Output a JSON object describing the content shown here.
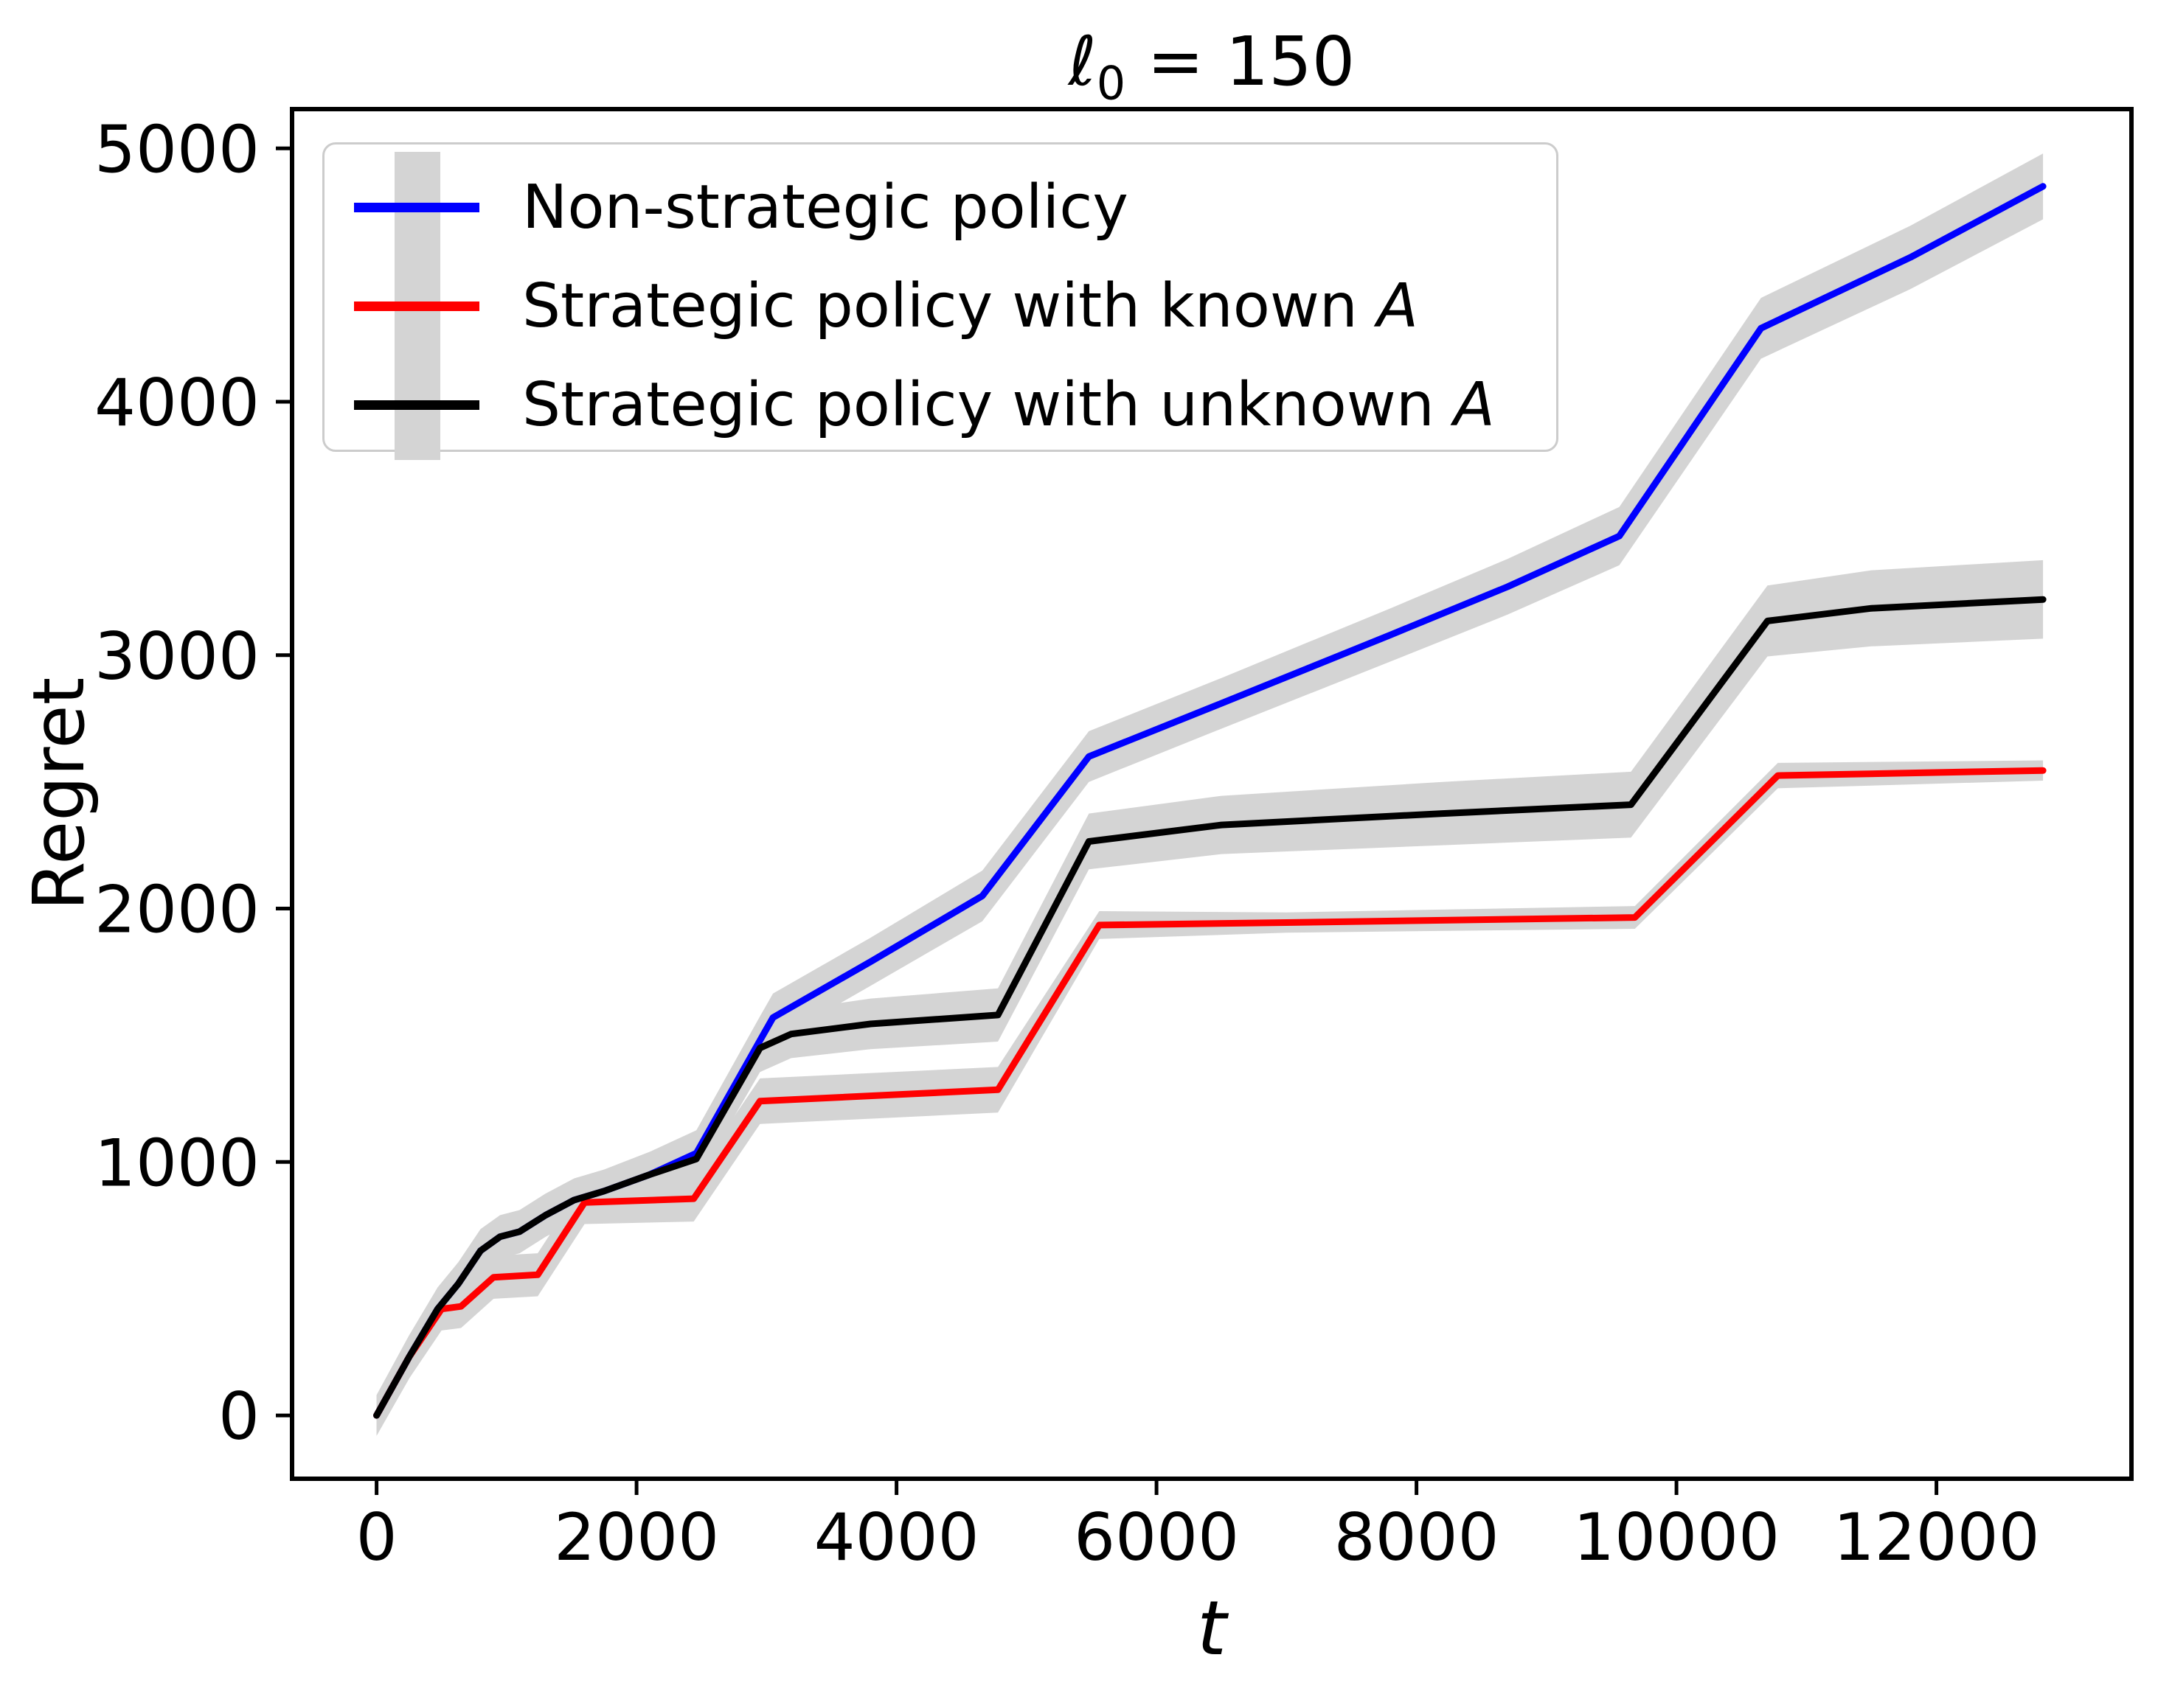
{
  "figure": {
    "background_color": "#ffffff",
    "axes_edge_color": "#000000",
    "band_color": "#d4d4d4"
  },
  "chart_data": {
    "type": "line",
    "title": "ℓ₀ = 150",
    "title_parts": {
      "symbol": "ℓ",
      "sub": "0",
      "rest": " = 150"
    },
    "xlabel": "t",
    "ylabel": "Regret",
    "xlim": [
      -650,
      13500
    ],
    "ylim": [
      -250,
      5155
    ],
    "xticks": [
      0,
      2000,
      4000,
      6000,
      8000,
      10000,
      12000
    ],
    "yticks": [
      0,
      1000,
      2000,
      3000,
      4000,
      5000
    ],
    "grid": false,
    "legend_position": "upper left",
    "series": [
      {
        "name": "Non-strategic policy",
        "color": "#0000ff",
        "band_color": "#d4d4d4",
        "t": [
          0,
          250,
          470,
          630,
          800,
          950,
          1100,
          1300,
          1520,
          1750,
          2100,
          2460,
          2950,
          3050,
          3800,
          4660,
          5480,
          6500,
          7800,
          8700,
          9560,
          10650,
          11800,
          12820
        ],
        "regret": [
          0,
          230,
          420,
          520,
          650,
          705,
          725,
          790,
          850,
          885,
          950,
          1035,
          1480,
          1570,
          1790,
          2050,
          2600,
          2810,
          3080,
          3270,
          3470,
          4290,
          4570,
          4850
        ],
        "band_halfwidth": [
          80,
          85,
          85,
          85,
          85,
          85,
          85,
          85,
          85,
          85,
          90,
          90,
          95,
          95,
          95,
          100,
          100,
          100,
          105,
          110,
          115,
          120,
          125,
          130
        ]
      },
      {
        "name": "Strategic policy with known A",
        "color": "#ff0000",
        "band_color": "#d4d4d4",
        "t": [
          0,
          250,
          500,
          650,
          900,
          1240,
          1600,
          2440,
          2950,
          4780,
          5560,
          7000,
          9680,
          10780,
          12820
        ],
        "regret": [
          0,
          230,
          420,
          430,
          545,
          555,
          840,
          855,
          1240,
          1285,
          1935,
          1945,
          1965,
          2525,
          2545
        ],
        "band_halfwidth": [
          80,
          85,
          85,
          85,
          85,
          85,
          85,
          90,
          90,
          90,
          55,
          40,
          45,
          50,
          40
        ]
      },
      {
        "name": "Strategic policy with unknown A",
        "color": "#000000",
        "band_color": "#d4d4d4",
        "t": [
          0,
          250,
          470,
          630,
          800,
          950,
          1100,
          1300,
          1520,
          1750,
          2100,
          2460,
          2950,
          3190,
          3800,
          4780,
          5480,
          6500,
          8200,
          9650,
          10700,
          11500,
          12820
        ],
        "regret": [
          0,
          230,
          420,
          520,
          650,
          705,
          725,
          790,
          850,
          885,
          950,
          1012,
          1450,
          1505,
          1545,
          1580,
          2265,
          2330,
          2375,
          2410,
          3135,
          3185,
          3220
        ],
        "band_halfwidth": [
          80,
          85,
          85,
          85,
          85,
          85,
          85,
          85,
          85,
          85,
          90,
          90,
          95,
          95,
          100,
          105,
          110,
          115,
          125,
          130,
          140,
          150,
          155
        ]
      }
    ],
    "legend": [
      {
        "label": "Non-strategic policy",
        "math": ""
      },
      {
        "label": "Strategic policy with known ",
        "math": "A"
      },
      {
        "label": "Strategic policy with unknown ",
        "math": "A"
      }
    ]
  }
}
